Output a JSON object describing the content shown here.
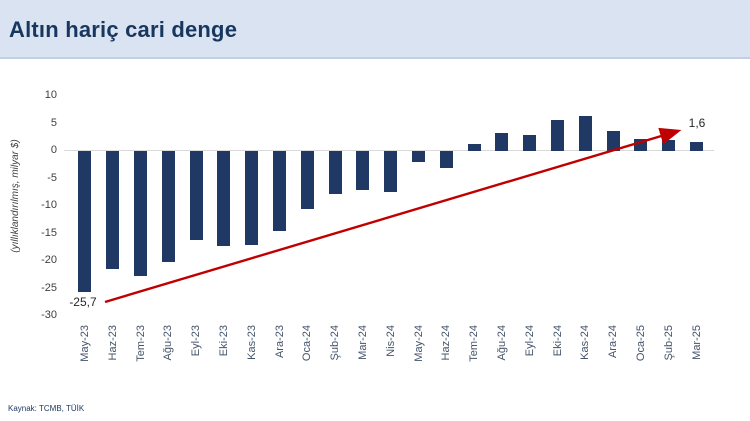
{
  "header": {
    "title": "Altın hariç cari denge"
  },
  "footer": {
    "source": "Kaynak: TCMB, TÜİK"
  },
  "colors": {
    "header_bg": "#dae3f1",
    "title_text": "#17375e",
    "bar": "#1f3864",
    "zero_line": "#d9d9d9",
    "tick_text": "#404040",
    "xlabel_text": "#44546a",
    "arrow": "#c00000"
  },
  "chart_data": {
    "type": "bar",
    "title": "Altın hariç cari denge",
    "xlabel": "",
    "ylabel": "(yıllıklandırılmış, milyar $)",
    "categories": [
      "May-23",
      "Haz-23",
      "Tem-23",
      "Ağu-23",
      "Eyl-23",
      "Eki-23",
      "Kas-23",
      "Ara-23",
      "Oca-24",
      "Şub-24",
      "Mar-24",
      "Nis-24",
      "May-24",
      "Haz-24",
      "Tem-24",
      "Ağu-24",
      "Eyl-24",
      "Eki-24",
      "Kas-24",
      "Ara-24",
      "Oca-25",
      "Şub-25",
      "Mar-25"
    ],
    "values": [
      -25.7,
      -21.4,
      -22.8,
      -20.2,
      -16.2,
      -17.3,
      -17.1,
      -14.5,
      -10.6,
      -7.8,
      -7.1,
      -7.4,
      -2.0,
      -3.1,
      1.2,
      3.2,
      3.0,
      5.6,
      6.3,
      3.6,
      2.1,
      2.0,
      1.6
    ],
    "ylim": [
      -30,
      10
    ],
    "yticks": [
      10,
      5,
      0,
      -5,
      -10,
      -15,
      -20,
      -25,
      -30
    ],
    "grid": false,
    "legend": false,
    "annotations": {
      "first_label": "-25,7",
      "last_label": "1,6",
      "trend_arrow": {
        "color": "#c00000",
        "from_category": "May-23",
        "to_category": "Mar-25"
      }
    }
  }
}
